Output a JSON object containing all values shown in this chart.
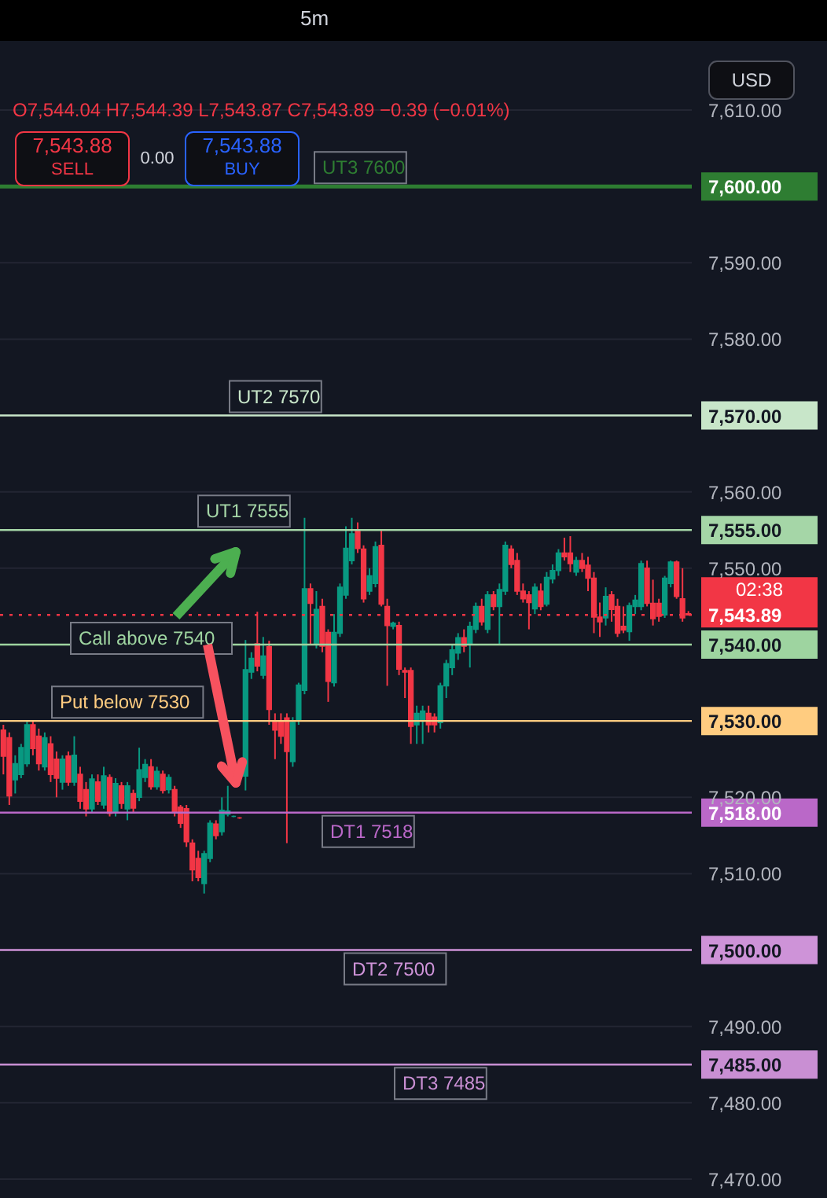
{
  "chart_data": {
    "type": "candlestick",
    "categories": [
      null,
      null,
      null,
      null,
      null,
      null,
      null,
      null,
      null,
      null,
      null,
      null,
      null,
      null,
      null,
      null,
      null,
      null,
      null,
      null,
      null,
      null,
      null,
      null,
      null,
      null,
      null,
      null,
      null,
      null,
      null,
      null,
      null,
      null,
      null,
      null,
      null,
      null,
      null,
      null,
      null,
      null,
      null,
      null,
      null,
      null,
      null,
      null,
      null,
      null,
      null,
      null,
      null,
      null,
      null,
      null,
      null,
      null,
      null,
      null,
      null,
      null,
      null,
      null,
      null,
      null,
      null,
      null,
      null,
      null,
      null,
      null,
      null,
      null,
      null,
      null,
      null,
      null,
      null,
      null,
      null,
      null,
      null,
      null,
      null,
      null,
      null,
      null,
      null,
      null,
      null,
      null,
      null,
      null,
      null,
      null,
      null,
      null,
      null,
      null,
      null,
      null,
      null,
      null,
      null,
      null,
      null,
      null,
      null,
      null,
      null,
      null,
      null,
      null,
      null,
      null,
      null
    ],
    "ohlc": [
      [
        7528.8,
        7529.5,
        7523,
        7525.4
      ],
      [
        7527.8,
        7528.5,
        7519,
        7520.2
      ],
      [
        7522.3,
        7525.5,
        7520.5,
        7524.4
      ],
      [
        7523,
        7527,
        7522.5,
        7526.5
      ],
      [
        7524.4,
        7530,
        7524,
        7529.5
      ],
      [
        7529.5,
        7530,
        7525.5,
        7526.4
      ],
      [
        7528,
        7529,
        7523.5,
        7524.4
      ],
      [
        7524,
        7528.5,
        7523.5,
        7527.8
      ],
      [
        7527,
        7528,
        7522,
        7523
      ],
      [
        7525,
        7526,
        7520,
        7522.5
      ],
      [
        7522,
        7525.5,
        7521,
        7525
      ],
      [
        7525.4,
        7526,
        7521.5,
        7522
      ],
      [
        7522,
        7528,
        7521.5,
        7525.5
      ],
      [
        7523,
        7524,
        7518.5,
        7519.5
      ],
      [
        7521,
        7522,
        7517.5,
        7518.5
      ],
      [
        7518.5,
        7523,
        7518,
        7522.4
      ],
      [
        7522,
        7523,
        7519,
        7519.5
      ],
      [
        7519,
        7524,
        7518.5,
        7522.8
      ],
      [
        7522.6,
        7523,
        7517.5,
        7517.9
      ],
      [
        7518,
        7522.5,
        7517.5,
        7521.8
      ],
      [
        7521.5,
        7522,
        7518.5,
        7519.2
      ],
      [
        7518.5,
        7522,
        7517,
        7521.5
      ],
      [
        7520.5,
        7521,
        7518,
        7518.6
      ],
      [
        7520,
        7526.5,
        7519.5,
        7523.6
      ],
      [
        7522.6,
        7525,
        7522,
        7524.3
      ],
      [
        7524,
        7525,
        7521,
        7521.4
      ],
      [
        7521.4,
        7524,
        7521,
        7523.4
      ],
      [
        7523,
        7523.5,
        7520.5,
        7520.9
      ],
      [
        7521,
        7523,
        7520.5,
        7522.6
      ],
      [
        7521,
        7521.5,
        7517.5,
        7518.1
      ],
      [
        7518.7,
        7519,
        7516,
        7516.6
      ],
      [
        7518.5,
        7519,
        7513.5,
        7514.2
      ],
      [
        7514,
        7514.5,
        7509,
        7510.5
      ],
      [
        7512,
        7513,
        7509,
        7509.5
      ],
      [
        7508.7,
        7513,
        7507.4,
        7512.6
      ],
      [
        7512,
        7517,
        7511.5,
        7516.6
      ],
      [
        7516.5,
        7517,
        7514.5,
        7515
      ],
      [
        7515.5,
        7520,
        7515,
        7518.3
      ],
      [
        7517.8,
        7521.5,
        7517.5,
        7518.2
      ],
      [
        7517.5,
        7517.6,
        7517.4,
        7517.5
      ],
      [
        7517.3,
        7517.4,
        7517.2,
        7517.3
      ],
      [
        7522.8,
        7540.6,
        7520.9,
        7536.7
      ],
      [
        7536.4,
        7539,
        7535.5,
        7538.2
      ],
      [
        7540.1,
        7544.3,
        7536.5,
        7537.2
      ],
      [
        7536,
        7541,
        7535.5,
        7538.5
      ],
      [
        7539.7,
        7540.5,
        7529.5,
        7531.5
      ],
      [
        7530,
        7531,
        7525,
        7528.8
      ],
      [
        7530,
        7531,
        7527,
        7528
      ],
      [
        7530.4,
        7531,
        7514,
        7526
      ],
      [
        7524.7,
        7530.5,
        7524,
        7529.8
      ],
      [
        7530,
        7535,
        7529.5,
        7534.7
      ],
      [
        7534,
        7556.6,
        7533.5,
        7547.3
      ],
      [
        7547.3,
        7548,
        7540,
        7545.4
      ],
      [
        7540,
        7547,
        7539.5,
        7544.6
      ],
      [
        7545,
        7546,
        7539,
        7539.8
      ],
      [
        7541.6,
        7542,
        7532.5,
        7535.2
      ],
      [
        7535,
        7544,
        7534.5,
        7541.6
      ],
      [
        7541.5,
        7548,
        7541,
        7547.5
      ],
      [
        7546.5,
        7555.5,
        7546,
        7552.6
      ],
      [
        7551,
        7556.6,
        7550.5,
        7554.5
      ],
      [
        7555,
        7556,
        7552,
        7552.6
      ],
      [
        7552.5,
        7553,
        7545.5,
        7546
      ],
      [
        7547,
        7550,
        7546.5,
        7549
      ],
      [
        7548,
        7553.5,
        7547.5,
        7552.8
      ],
      [
        7553,
        7555,
        7545,
        7545.3
      ],
      [
        7545,
        7546,
        7534.6,
        7542.5
      ],
      [
        7542.4,
        7543,
        7542,
        7542.8
      ],
      [
        7542.5,
        7543,
        7536,
        7536.8
      ],
      [
        7536.6,
        7537,
        7533,
        7536.4
      ],
      [
        7536.6,
        7537,
        7527,
        7529.3
      ],
      [
        7529.5,
        7532,
        7527,
        7531
      ],
      [
        7530,
        7532,
        7527,
        7531.3
      ],
      [
        7531,
        7532,
        7528.5,
        7529.5
      ],
      [
        7530.5,
        7531,
        7528.5,
        7529.5
      ],
      [
        7529.8,
        7535,
        7529,
        7534.6
      ],
      [
        7534.6,
        7538,
        7533,
        7537.5
      ],
      [
        7537,
        7540,
        7536,
        7539.3
      ],
      [
        7538.9,
        7541.5,
        7538,
        7540.9
      ],
      [
        7540.9,
        7542,
        7539,
        7539.8
      ],
      [
        7540,
        7543,
        7537,
        7542.4
      ],
      [
        7542,
        7545.5,
        7541.5,
        7545
      ],
      [
        7545,
        7546,
        7542.5,
        7543
      ],
      [
        7542,
        7547,
        7541.5,
        7546.5
      ],
      [
        7546.5,
        7547,
        7544.5,
        7545
      ],
      [
        7545,
        7548,
        7540,
        7547.2
      ],
      [
        7547,
        7553.5,
        7546.5,
        7553
      ],
      [
        7552.5,
        7553,
        7550,
        7550.5
      ],
      [
        7551,
        7552,
        7546.5,
        7547
      ],
      [
        7547,
        7548,
        7545.5,
        7546
      ],
      [
        7546.5,
        7547,
        7542,
        7545.5
      ],
      [
        7544.7,
        7548,
        7544,
        7547.5
      ],
      [
        7547,
        7548,
        7544.5,
        7545
      ],
      [
        7545.3,
        7549.5,
        7545,
        7548.8
      ],
      [
        7548.6,
        7550.5,
        7548,
        7549.7
      ],
      [
        7549.7,
        7552.5,
        7549,
        7552
      ],
      [
        7552,
        7554,
        7551,
        7551.5
      ],
      [
        7552,
        7554.2,
        7549.5,
        7550.6
      ],
      [
        7549.5,
        7551.5,
        7549,
        7551
      ],
      [
        7551,
        7552,
        7549.5,
        7550
      ],
      [
        7550.4,
        7551.5,
        7547,
        7548.7
      ],
      [
        7548.7,
        7549.5,
        7541.5,
        7543.6
      ],
      [
        7543.6,
        7545.5,
        7541,
        7543
      ],
      [
        7543.5,
        7547.5,
        7542.5,
        7546.3
      ],
      [
        7546.5,
        7547,
        7543,
        7544.6
      ],
      [
        7545,
        7546,
        7541,
        7541.5
      ],
      [
        7542.4,
        7545,
        7541.5,
        7541.9
      ],
      [
        7541.7,
        7545.5,
        7540.5,
        7545.1
      ],
      [
        7545,
        7546.5,
        7544,
        7545.8
      ],
      [
        7545,
        7551,
        7544.5,
        7550.6
      ],
      [
        7550,
        7551,
        7545,
        7545.4
      ],
      [
        7545.4,
        7548.5,
        7542.5,
        7543.4
      ],
      [
        7545.4,
        7546,
        7543,
        7543.7
      ],
      [
        7543.9,
        7549,
        7543.5,
        7548.7
      ],
      [
        7548,
        7551,
        7547.5,
        7550.8
      ],
      [
        7550.8,
        7551,
        7546,
        7546.3
      ],
      [
        7546,
        7550,
        7543,
        7543.5
      ],
      [
        7544.04,
        7544.39,
        7543.87,
        7543.89
      ]
    ],
    "colors": [
      "#f23645",
      "#f23645",
      "#089981",
      "#089981",
      "#089981",
      "#f23645",
      "#f23645",
      "#089981",
      "#f23645",
      "#f23645",
      "#089981",
      "#f23645",
      "#089981",
      "#f23645",
      "#f23645",
      "#089981",
      "#f23645",
      "#089981",
      "#f23645",
      "#089981",
      "#f23645",
      "#089981",
      "#f23645",
      "#089981",
      "#089981",
      "#f23645",
      "#089981",
      "#f23645",
      "#089981",
      "#f23645",
      "#f23645",
      "#f23645",
      "#f23645",
      "#f23645",
      "#089981",
      "#089981",
      "#f23645",
      "#089981",
      "#089981",
      "#089981",
      "#f23645",
      "#089981",
      "#089981",
      "#f23645",
      "#089981",
      "#f23645",
      "#f23645",
      "#f23645",
      "#f23645",
      "#089981",
      "#089981",
      "#089981",
      "#f23645",
      "#089981",
      "#f23645",
      "#f23645",
      "#089981",
      "#089981",
      "#089981",
      "#089981",
      "#f23645",
      "#f23645",
      "#089981",
      "#089981",
      "#f23645",
      "#f23645",
      "#089981",
      "#f23645",
      "#f23645",
      "#f23645",
      "#089981",
      "#089981",
      "#f23645",
      "#f23645",
      "#089981",
      "#089981",
      "#089981",
      "#089981",
      "#f23645",
      "#089981",
      "#089981",
      "#f23645",
      "#089981",
      "#f23645",
      "#089981",
      "#089981",
      "#f23645",
      "#f23645",
      "#f23645",
      "#f23645",
      "#089981",
      "#f23645",
      "#089981",
      "#089981",
      "#089981",
      "#f23645",
      "#f23645",
      "#089981",
      "#f23645",
      "#f23645",
      "#f23645",
      "#f23645",
      "#089981",
      "#f23645",
      "#f23645",
      "#f23645",
      "#089981",
      "#089981",
      "#089981",
      "#f23645",
      "#f23645",
      "#f23645",
      "#089981",
      "#089981",
      "#f23645",
      "#f23645",
      "#f23645"
    ],
    "ylim": [
      7470,
      7610
    ],
    "yticks": [
      {
        "value": 7470,
        "label": "7,470.00"
      },
      {
        "value": 7480,
        "label": "7,480.00"
      },
      {
        "value": 7485,
        "label": "7,485.00"
      },
      {
        "value": 7490,
        "label": "7,490.00"
      },
      {
        "value": 7500,
        "label": "7,500.00"
      },
      {
        "value": 7510,
        "label": "7,510.00"
      },
      {
        "value": 7518,
        "label": "7,518.00"
      },
      {
        "value": 7520,
        "label": "7,520.00"
      },
      {
        "value": 7530,
        "label": "7,530.00"
      },
      {
        "value": 7540,
        "label": "7,540.00"
      },
      {
        "value": 7543.89,
        "label": "7,543.89"
      },
      {
        "value": 7550,
        "label": "7,550.00"
      },
      {
        "value": 7555,
        "label": "7,555.00"
      },
      {
        "value": 7560,
        "label": "7,560.00"
      },
      {
        "value": 7570,
        "label": "7,570.00"
      },
      {
        "value": 7580,
        "label": "7,580.00"
      },
      {
        "value": 7590,
        "label": "7,590.00"
      },
      {
        "value": 7600,
        "label": "7,600.00"
      },
      {
        "value": 7610,
        "label": "7,610.00"
      }
    ],
    "grid": "y",
    "tick_labels": "y",
    "ref_lines": [
      {
        "axis": "y",
        "value": 7600,
        "label": "UT3 7600",
        "color": "#2e7d32"
      },
      {
        "axis": "y",
        "value": 7570,
        "label": "UT2 7570",
        "color": "#c8e6c9"
      },
      {
        "axis": "y",
        "value": 7555,
        "label": "UT1 7555",
        "color": "#a5d6a7"
      },
      {
        "axis": "y",
        "value": 7543.89,
        "color": "#f23645",
        "line_style": "dotted"
      },
      {
        "axis": "y",
        "value": 7540,
        "label": "Call above 7540",
        "color": "#9ed4a0"
      },
      {
        "axis": "y",
        "value": 7530,
        "label": "Put below 7530",
        "color": "#ffcc80"
      },
      {
        "axis": "y",
        "value": 7518,
        "label": "DT1 7518",
        "color": "#ba68c8"
      },
      {
        "axis": "y",
        "value": 7500,
        "label": "DT2  7500",
        "color": "#ce93d8"
      },
      {
        "axis": "y",
        "value": 7485,
        "label": "DT3 7485",
        "color": "#c98fd3"
      }
    ],
    "annotations": [
      "5m",
      "O7,544.04 H7,544.39 L7,543.87 C7,543.89 −0.39 (−0.01%)",
      "7,543.88",
      "SELL",
      "0.00",
      "7,543.88",
      "BUY",
      "USD",
      "02:38"
    ]
  }
}
